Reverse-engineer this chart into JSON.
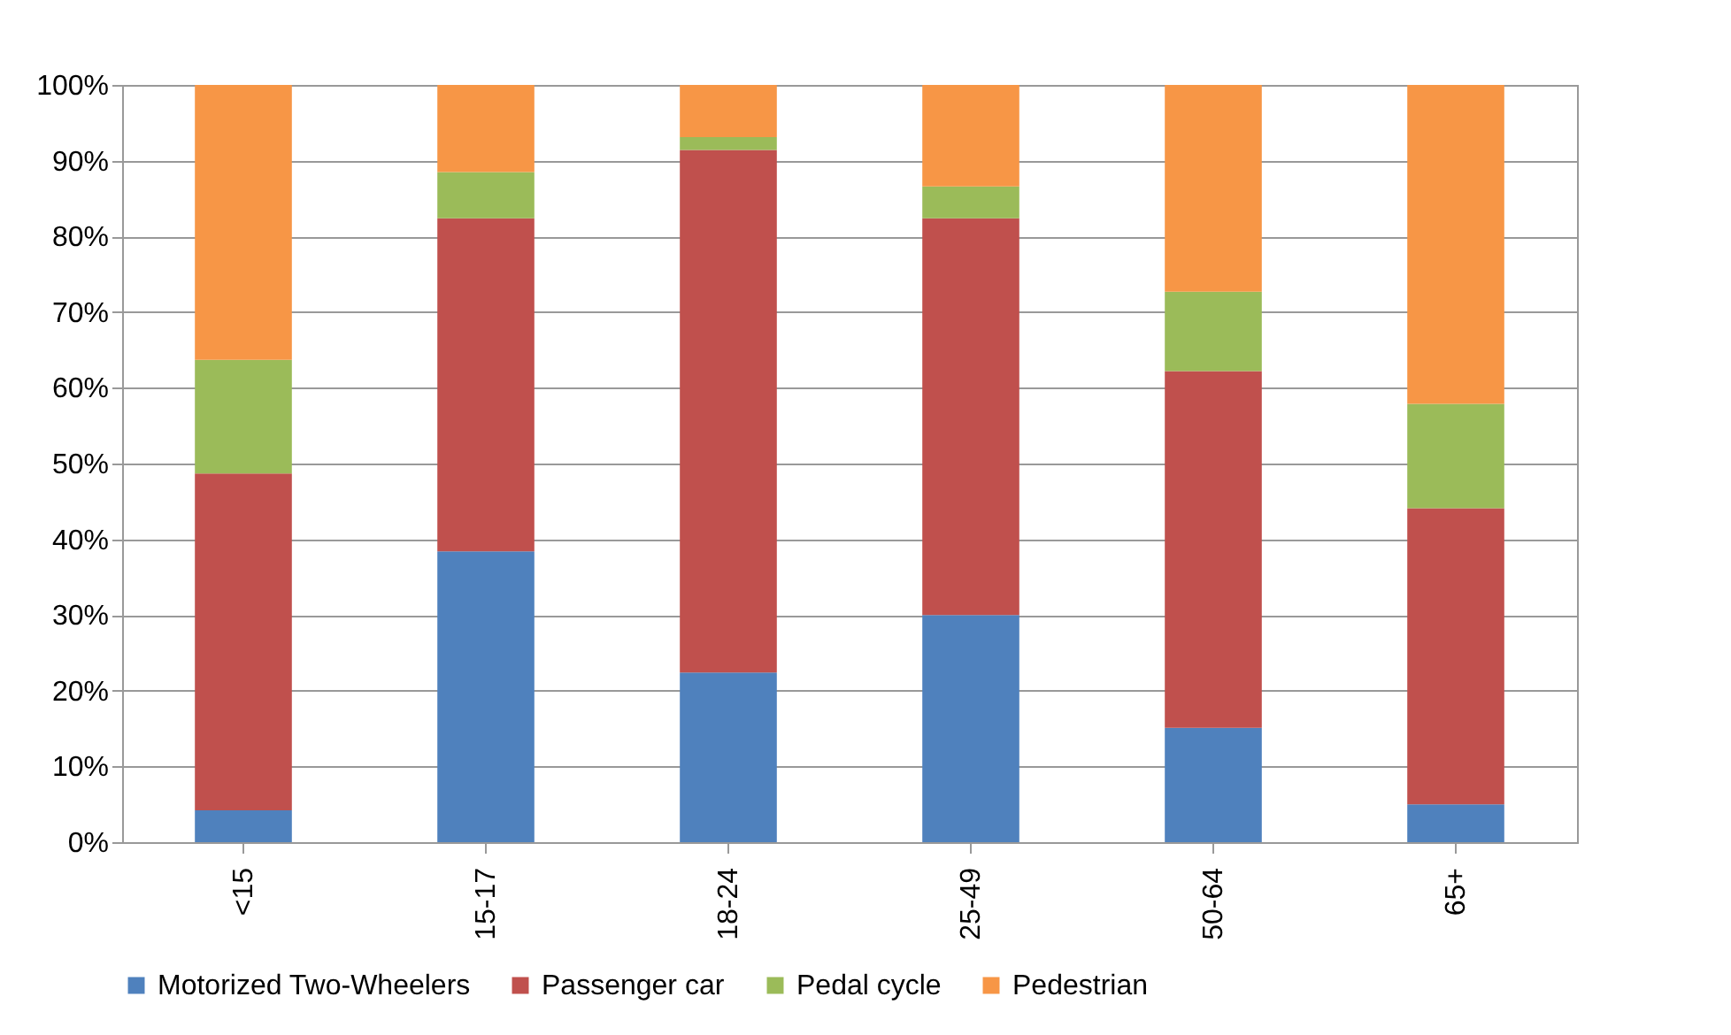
{
  "chart_data": {
    "type": "bar",
    "stacked": true,
    "categories": [
      "<15",
      "15-17",
      "18-24",
      "25-49",
      "50-64",
      "65+"
    ],
    "series": [
      {
        "name": "Motorized Two-Wheelers",
        "color": "#4f81bd",
        "values": [
          4.2,
          38.4,
          22.4,
          30.0,
          15.1,
          5.0
        ]
      },
      {
        "name": "Passenger car",
        "color": "#c0504d",
        "values": [
          44.5,
          44.0,
          69.0,
          52.4,
          47.1,
          39.1
        ]
      },
      {
        "name": "Pedal cycle",
        "color": "#9bbb59",
        "values": [
          15.0,
          6.1,
          1.7,
          4.2,
          10.5,
          13.8
        ]
      },
      {
        "name": "Pedestrian",
        "color": "#f79646",
        "values": [
          36.3,
          11.5,
          6.9,
          13.4,
          27.3,
          42.1
        ]
      }
    ],
    "ylim": [
      0,
      100
    ],
    "yticks": [
      {
        "value": 0,
        "label": "0%"
      },
      {
        "value": 10,
        "label": "10%"
      },
      {
        "value": 20,
        "label": "20%"
      },
      {
        "value": 30,
        "label": "30%"
      },
      {
        "value": 40,
        "label": "40%"
      },
      {
        "value": 50,
        "label": "50%"
      },
      {
        "value": 60,
        "label": "60%"
      },
      {
        "value": 70,
        "label": "70%"
      },
      {
        "value": 80,
        "label": "80%"
      },
      {
        "value": 90,
        "label": "90%"
      },
      {
        "value": 100,
        "label": "100%"
      }
    ],
    "grid": "y",
    "legend": "bottom"
  }
}
